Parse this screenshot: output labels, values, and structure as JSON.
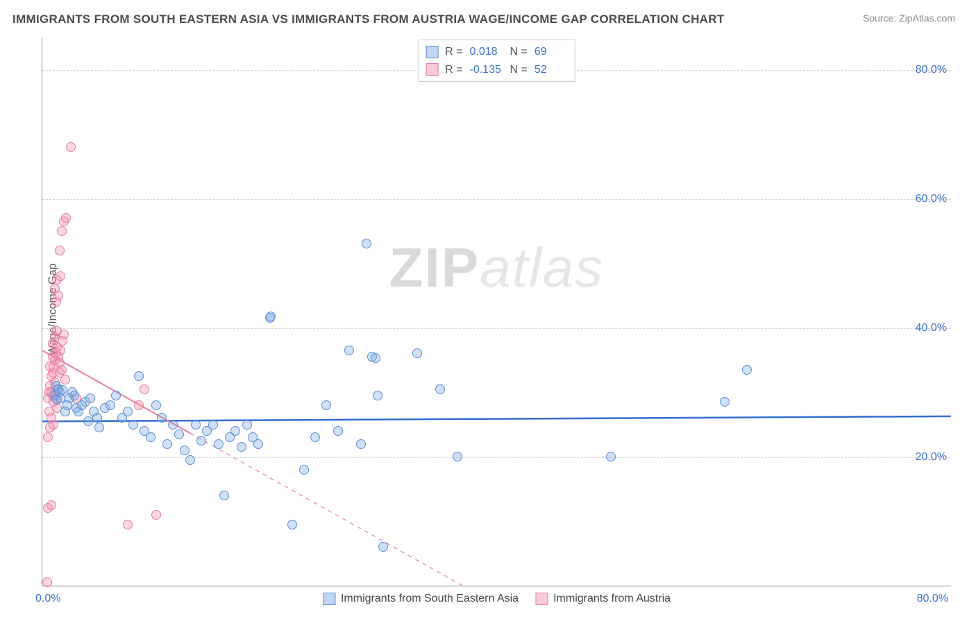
{
  "title": "IMMIGRANTS FROM SOUTH EASTERN ASIA VS IMMIGRANTS FROM AUSTRIA WAGE/INCOME GAP CORRELATION CHART",
  "source": "Source: ZipAtlas.com",
  "watermark": {
    "part1": "ZIP",
    "part2": "atlas"
  },
  "ylabel": "Wage/Income Gap",
  "axes": {
    "xmin": 0,
    "xmax": 80,
    "ymin": 0,
    "ymax": 85,
    "yticks": [
      20,
      40,
      60,
      80
    ],
    "ytick_labels": [
      "20.0%",
      "40.0%",
      "60.0%",
      "80.0%"
    ],
    "xtick_labels": [
      "0.0%",
      "80.0%"
    ],
    "grid_color": "#d5d5d5",
    "axis_color": "#888888",
    "tick_font_color": "#3b6fcf",
    "tick_fontsize": 16
  },
  "series": {
    "blue": {
      "label": "Immigrants from South Eastern Asia",
      "color_fill": "rgba(120,165,225,0.35)",
      "color_stroke": "#5a8ed6",
      "marker_size": 14,
      "R": "0.018",
      "N": "69",
      "trend": {
        "x1": 0,
        "y1": 25.5,
        "x2": 80,
        "y2": 26.3,
        "stroke": "#2f6fd0",
        "width": 2.5,
        "dash": "none"
      },
      "points": [
        [
          1.1,
          29.5
        ],
        [
          1.2,
          31.0
        ],
        [
          1.3,
          28.8
        ],
        [
          1.4,
          30.5
        ],
        [
          1.5,
          30.0
        ],
        [
          1.6,
          29.0
        ],
        [
          1.8,
          30.3
        ],
        [
          2.0,
          27.0
        ],
        [
          2.2,
          28.0
        ],
        [
          2.4,
          29.0
        ],
        [
          2.6,
          30.0
        ],
        [
          2.8,
          29.5
        ],
        [
          3.0,
          27.5
        ],
        [
          3.2,
          27.0
        ],
        [
          3.5,
          28.0
        ],
        [
          3.8,
          28.5
        ],
        [
          4.0,
          25.5
        ],
        [
          4.2,
          29.0
        ],
        [
          4.5,
          27.0
        ],
        [
          4.8,
          26.0
        ],
        [
          5.0,
          24.5
        ],
        [
          5.5,
          27.5
        ],
        [
          6.0,
          28.0
        ],
        [
          6.5,
          29.5
        ],
        [
          7.0,
          26.0
        ],
        [
          7.5,
          27.0
        ],
        [
          8.0,
          25.0
        ],
        [
          8.5,
          32.5
        ],
        [
          9.0,
          24.0
        ],
        [
          9.5,
          23.0
        ],
        [
          10.0,
          28.0
        ],
        [
          10.5,
          26.0
        ],
        [
          11.0,
          22.0
        ],
        [
          11.5,
          25.0
        ],
        [
          12.0,
          23.5
        ],
        [
          12.5,
          21.0
        ],
        [
          13.0,
          19.5
        ],
        [
          13.5,
          25.0
        ],
        [
          14.0,
          22.5
        ],
        [
          14.5,
          24.0
        ],
        [
          15.0,
          25.0
        ],
        [
          15.5,
          22.0
        ],
        [
          16.0,
          14.0
        ],
        [
          16.5,
          23.0
        ],
        [
          17.0,
          24.0
        ],
        [
          17.5,
          21.5
        ],
        [
          18.0,
          25.0
        ],
        [
          18.5,
          23.0
        ],
        [
          19.0,
          22.0
        ],
        [
          20.0,
          41.5
        ],
        [
          20.1,
          41.8
        ],
        [
          22.0,
          9.5
        ],
        [
          23.0,
          18.0
        ],
        [
          24.0,
          23.0
        ],
        [
          25.0,
          28.0
        ],
        [
          26.0,
          24.0
        ],
        [
          27.0,
          36.5
        ],
        [
          28.0,
          22.0
        ],
        [
          29.0,
          35.5
        ],
        [
          29.5,
          29.5
        ],
        [
          30.0,
          6.0
        ],
        [
          33.0,
          36.0
        ],
        [
          35.0,
          30.5
        ],
        [
          36.5,
          20.0
        ],
        [
          28.5,
          53.0
        ],
        [
          50.0,
          20.0
        ],
        [
          60.0,
          28.5
        ],
        [
          62.0,
          33.5
        ],
        [
          29.3,
          35.3
        ]
      ]
    },
    "pink": {
      "label": "Immigrants from Austria",
      "color_fill": "rgba(240,140,170,0.35)",
      "color_stroke": "#e87ba3",
      "marker_size": 14,
      "R": "-0.135",
      "N": "52",
      "trend": {
        "x1": 0,
        "y1": 36.5,
        "x2": 37,
        "y2": 0,
        "stroke": "#e87ba3",
        "width": 2,
        "dash": "solid_then_dash",
        "solid_until_x": 13
      },
      "points": [
        [
          0.5,
          29.0
        ],
        [
          0.6,
          30.0
        ],
        [
          0.7,
          31.0
        ],
        [
          0.8,
          32.5
        ],
        [
          0.9,
          33.0
        ],
        [
          1.0,
          34.0
        ],
        [
          1.1,
          35.0
        ],
        [
          1.2,
          36.0
        ],
        [
          1.3,
          37.0
        ],
        [
          1.4,
          35.5
        ],
        [
          1.5,
          34.5
        ],
        [
          1.6,
          36.5
        ],
        [
          1.7,
          33.5
        ],
        [
          1.8,
          38.0
        ],
        [
          1.9,
          39.0
        ],
        [
          2.0,
          32.0
        ],
        [
          0.8,
          30.0
        ],
        [
          0.9,
          29.5
        ],
        [
          1.0,
          28.5
        ],
        [
          1.1,
          31.5
        ],
        [
          1.2,
          29.0
        ],
        [
          1.3,
          27.5
        ],
        [
          1.4,
          30.5
        ],
        [
          1.5,
          33.0
        ],
        [
          0.5,
          23.0
        ],
        [
          0.7,
          24.5
        ],
        [
          0.9,
          37.5
        ],
        [
          1.1,
          46.0
        ],
        [
          1.3,
          47.5
        ],
        [
          1.5,
          52.0
        ],
        [
          1.7,
          55.0
        ],
        [
          1.9,
          56.5
        ],
        [
          2.1,
          57.0
        ],
        [
          0.7,
          34.0
        ],
        [
          0.9,
          35.5
        ],
        [
          1.1,
          38.5
        ],
        [
          1.3,
          39.5
        ],
        [
          0.5,
          12.0
        ],
        [
          0.8,
          12.5
        ],
        [
          1.2,
          44.0
        ],
        [
          1.4,
          45.0
        ],
        [
          1.6,
          48.0
        ],
        [
          0.6,
          27.0
        ],
        [
          0.8,
          26.0
        ],
        [
          1.0,
          25.0
        ],
        [
          2.5,
          68.0
        ],
        [
          7.5,
          9.5
        ],
        [
          8.5,
          28.0
        ],
        [
          9.0,
          30.5
        ],
        [
          10.0,
          11.0
        ],
        [
          0.4,
          0.5
        ],
        [
          3.0,
          29.0
        ]
      ]
    }
  },
  "legend_top_labels": {
    "R": "R  =",
    "N": "N  ="
  },
  "legend_bottom": [
    {
      "series": "blue"
    },
    {
      "series": "pink"
    }
  ]
}
